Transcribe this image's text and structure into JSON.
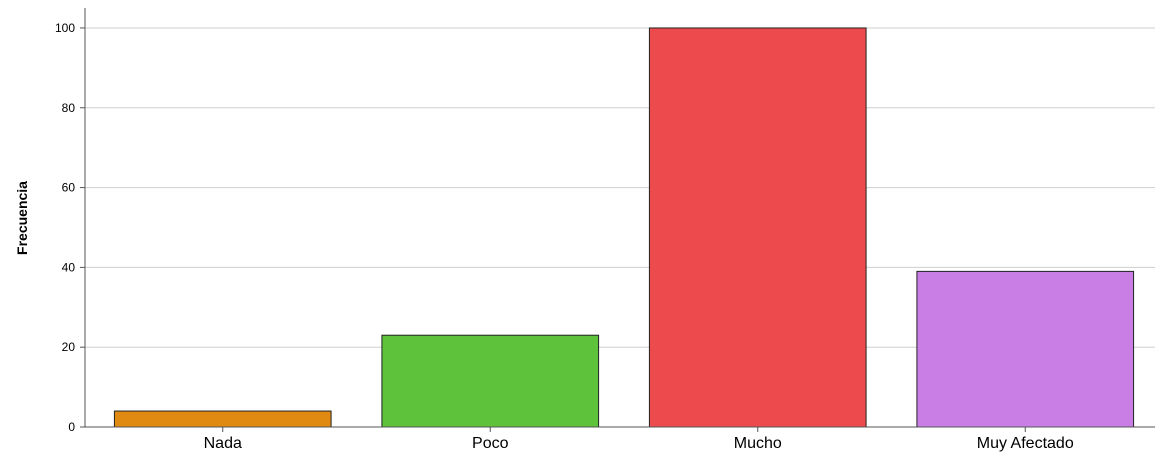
{
  "chart_data": {
    "type": "bar",
    "title": "",
    "xlabel": "",
    "ylabel": "Frecuencia",
    "categories": [
      "Nada",
      "Poco",
      "Mucho",
      "Muy Afectado"
    ],
    "values": [
      4,
      23,
      100,
      39
    ],
    "colors": [
      "#e08a12",
      "#5ec23a",
      "#ec4a4c",
      "#c97ee6"
    ],
    "ylim": [
      0,
      105
    ],
    "yticks": [
      "0",
      "20",
      "40",
      "60",
      "80",
      "100"
    ],
    "grid": true,
    "legend": "none"
  }
}
